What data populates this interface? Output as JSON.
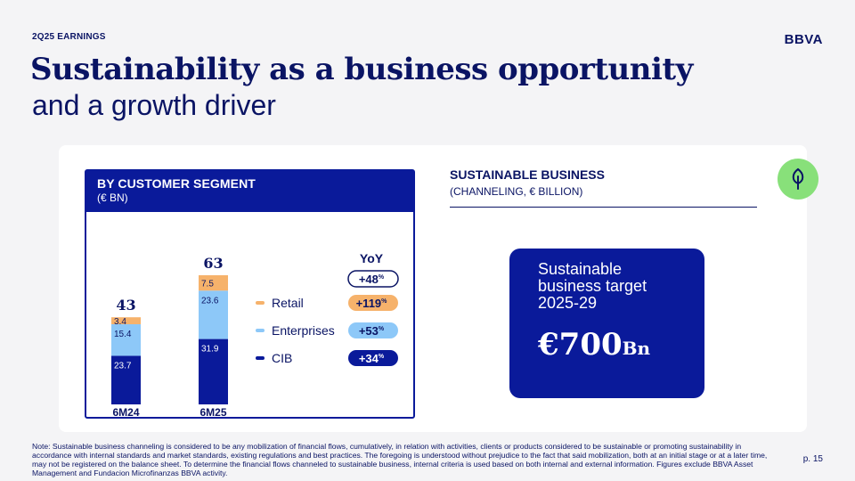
{
  "header": {
    "kicker": "2Q25 EARNINGS",
    "logo": "BBVA",
    "title_line1": "Sustainability as a business opportunity",
    "title_line2": "and a growth driver"
  },
  "segment_panel": {
    "title": "BY CUSTOMER SEGMENT",
    "subtitle": "(€ BN)"
  },
  "chart_data": {
    "type": "bar",
    "stacked": true,
    "title": "BY CUSTOMER SEGMENT",
    "ylabel": "(€ BN)",
    "categories": [
      "6M24",
      "6M25"
    ],
    "totals": [
      "43",
      "63"
    ],
    "series": [
      {
        "name": "CIB",
        "color": "#0a1a9a",
        "values": [
          23.7,
          31.9
        ],
        "labels": [
          "23.7",
          "31.9"
        ],
        "yoy": "+34",
        "label_color": "#ffffff"
      },
      {
        "name": "Enterprises",
        "color": "#8dc8f8",
        "values": [
          15.4,
          23.6
        ],
        "labels": [
          "15.4",
          "23.6"
        ],
        "yoy": "+53",
        "label_color": "#0a1464"
      },
      {
        "name": "Retail",
        "color": "#f6b26b",
        "values": [
          3.4,
          7.5
        ],
        "labels": [
          "3.4",
          "7.5"
        ],
        "yoy": "+119",
        "label_color": "#0a1464"
      }
    ],
    "yoy_header": "YoY",
    "yoy_total": "+48",
    "percent_sign": "%",
    "ylim": [
      0,
      63
    ]
  },
  "sustainable_business": {
    "title": "SUSTAINABLE BUSINESS",
    "subtitle": "(CHANNELING, € BILLION)",
    "icon": "leaf-icon",
    "target_text": "Sustainable business target 2025-29",
    "target_currency_value": "€700",
    "target_unit": "Bn"
  },
  "footer": {
    "note": "Note: Sustainable business channeling is considered to be any mobilization of financial flows, cumulatively, in relation with activities, clients or products considered to be sustainable or promoting sustainability in accordance with internal standards and market standards, existing regulations and best practices. The foregoing is understood without prejudice to the fact that said mobilization, both at an initial stage or at a later time, may not be registered on the balance sheet. To determine the financial flows channeled to sustainable business, internal criteria is used based on both internal and external information. Figures exclude BBVA Asset Management and Fundacion Microfinanzas BBVA activity.",
    "page": "p. 15"
  }
}
